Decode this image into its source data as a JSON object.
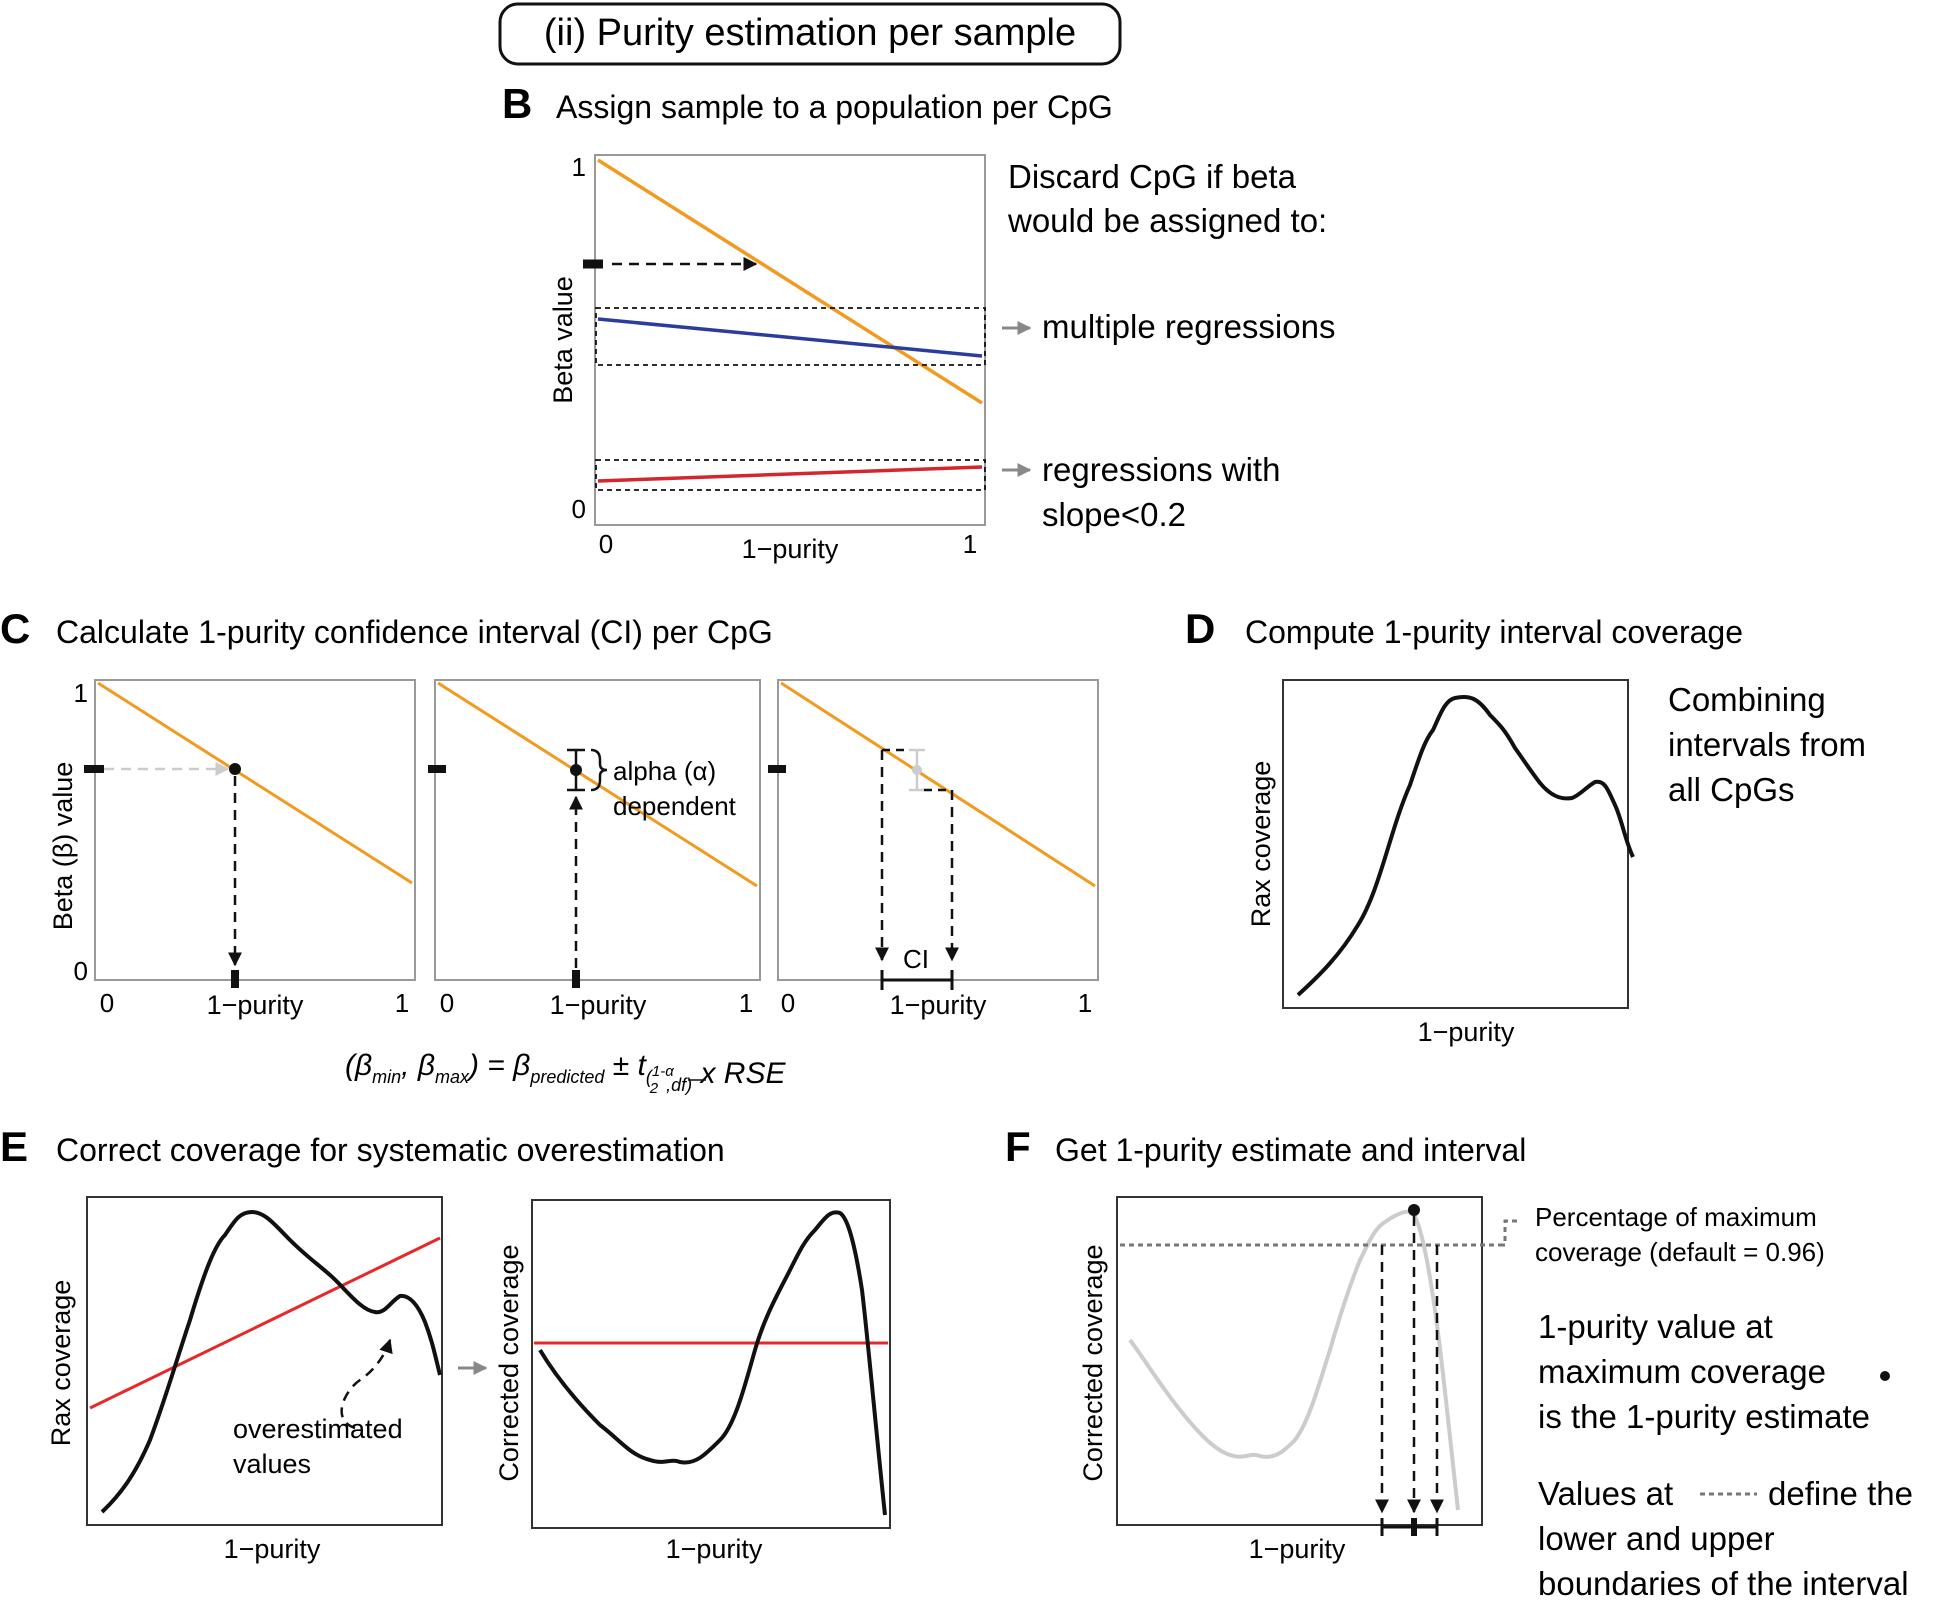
{
  "header": {
    "title": "(ii) Purity estimation per sample"
  },
  "panel_b": {
    "letter": "B",
    "title": "Assign sample to a population per CpG",
    "ylabel": "Beta value",
    "xlabel": "1−purity",
    "ytick_top": "1",
    "ytick_bottom": "0",
    "xtick_left": "0",
    "xtick_right": "1",
    "note_line1": "Discard CpG if beta",
    "note_line2": "would be assigned to:",
    "rule1": "multiple regressions",
    "rule2_line1": "regressions with",
    "rule2_line2": "slope<0.2"
  },
  "panel_c": {
    "letter": "C",
    "title": "Calculate 1-purity confidence interval (CI) per CpG",
    "ylabel": "Beta (β) value",
    "xlabel": "1−purity",
    "ytick_top": "1",
    "ytick_bottom": "0",
    "xtick_left": "0",
    "xtick_right": "1",
    "alpha_line1": "alpha (α)",
    "alpha_line2": "dependent",
    "ci_label": "CI",
    "formula": {
      "open": "(β",
      "min": "min",
      "comma": ", β",
      "max": "max",
      "mid": ") = β",
      "pred": "predicted",
      "pm": " ± t",
      "frac_num": "1-α",
      "frac_den": "2",
      "df": ",df)",
      "rest": " x RSE"
    }
  },
  "panel_d": {
    "letter": "D",
    "title": "Compute 1-purity interval coverage",
    "ylabel": "Rax coverage",
    "xlabel": "1−purity",
    "note_line1": "Combining",
    "note_line2": "intervals from",
    "note_line3": "all CpGs"
  },
  "panel_e": {
    "letter": "E",
    "title": "Correct coverage for systematic overestimation",
    "ylabel_left": "Rax coverage",
    "ylabel_right": "Corrected coverage",
    "xlabel": "1−purity",
    "annotation_line1": "overestimated",
    "annotation_line2": "values"
  },
  "panel_f": {
    "letter": "F",
    "title": "Get 1-purity estimate and interval",
    "ylabel": "Corrected coverage",
    "xlabel": "1−purity",
    "threshold_line1": "Percentage of maximum",
    "threshold_line2": "coverage (default = 0.96)",
    "note1_line1": "1-purity value at",
    "note1_line2": "maximum coverage",
    "note1_line3": "is the 1-purity estimate",
    "note2_line1_a": "Values at",
    "note2_line1_b": "define the",
    "note2_line2": "lower and upper",
    "note2_line3": "boundaries of the interval"
  },
  "colors": {
    "orange": "#f39a1e",
    "blue": "#2a3d9c",
    "red": "#d22630",
    "red_line": "#e8272a",
    "grey": "#cccccc",
    "frame": "#999999",
    "black": "#111111"
  }
}
